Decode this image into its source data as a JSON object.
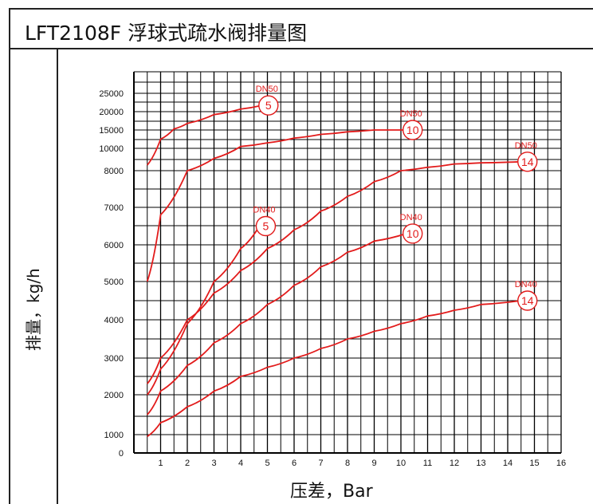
{
  "header": {
    "title": "LFT2108F 浮球式疏水阀排量图"
  },
  "axes": {
    "ylabel": "排量，kg/h",
    "xlabel": "压差，Bar"
  },
  "chart_data": {
    "type": "line",
    "title": "LFT2108F 浮球式疏水阀排量图",
    "xlabel": "压差，Bar",
    "ylabel": "排量，kg/h",
    "xlim": [
      0,
      16
    ],
    "x_ticks": [
      "0",
      "1",
      "2",
      "3",
      "4",
      "5",
      "6",
      "7",
      "8",
      "9",
      "10",
      "11",
      "12",
      "13",
      "14",
      "15",
      "16"
    ],
    "y_ticks": [
      "0",
      "1000",
      "2000",
      "3000",
      "4000",
      "5000",
      "6000",
      "7000",
      "8000",
      "10000",
      "15000",
      "20000",
      "25000"
    ],
    "y_tick_values": [
      0,
      1000,
      2000,
      3000,
      4000,
      5000,
      6000,
      7000,
      8000,
      10000,
      15000,
      20000,
      25000
    ],
    "grid": true,
    "line_color": "#e21b1b",
    "series": [
      {
        "size": "DN50",
        "orifice": "5",
        "x": [
          0.5,
          1,
          1.5,
          2,
          3,
          4,
          4.8
        ],
        "y": [
          8500,
          12500,
          15300,
          16800,
          19200,
          20700,
          21700
        ]
      },
      {
        "size": "DN50",
        "orifice": "10",
        "x": [
          0.5,
          1,
          2,
          3,
          4,
          5,
          6,
          7,
          8,
          9,
          10.2
        ],
        "y": [
          5000,
          6800,
          8000,
          9100,
          10500,
          11500,
          12800,
          13800,
          14500,
          15000,
          15000
        ]
      },
      {
        "size": "DN50",
        "orifice": "14",
        "x": [
          0.5,
          1,
          2,
          3,
          4,
          5,
          6,
          7,
          8,
          9,
          10,
          11,
          12,
          13,
          14.5
        ],
        "y": [
          2300,
          3000,
          4000,
          4700,
          5300,
          5900,
          6400,
          6900,
          7300,
          7700,
          8000,
          8300,
          8600,
          8700,
          8800
        ]
      },
      {
        "size": "DN40",
        "orifice": "5",
        "x": [
          0.5,
          1,
          2,
          3,
          4,
          4.7
        ],
        "y": [
          2000,
          2700,
          3900,
          5000,
          5900,
          6500
        ]
      },
      {
        "size": "DN40",
        "orifice": "10",
        "x": [
          0.5,
          1,
          2,
          3,
          4,
          5,
          6,
          7,
          8,
          9,
          10.2
        ],
        "y": [
          1500,
          2100,
          2800,
          3400,
          3900,
          4400,
          4900,
          5400,
          5800,
          6100,
          6300
        ]
      },
      {
        "size": "DN40",
        "orifice": "14",
        "x": [
          0.5,
          1,
          2,
          3,
          4,
          5,
          6,
          7,
          8,
          9,
          10,
          11,
          12,
          13,
          14.5
        ],
        "y": [
          900,
          1300,
          1700,
          2100,
          2500,
          2750,
          3000,
          3250,
          3500,
          3700,
          3900,
          4100,
          4250,
          4400,
          4500
        ]
      }
    ]
  }
}
